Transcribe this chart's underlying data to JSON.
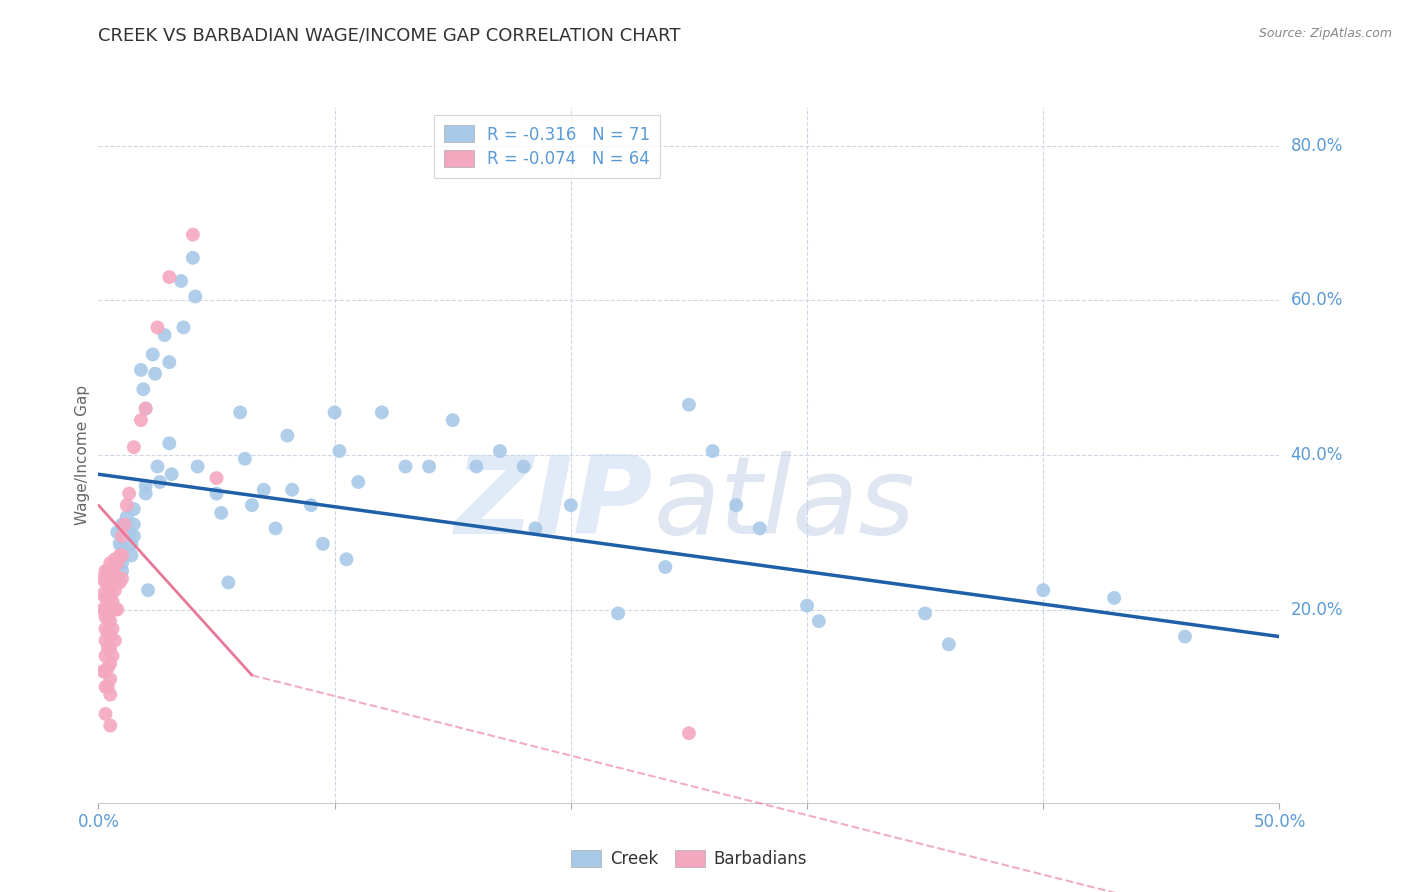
{
  "title": "CREEK VS BARBADIAN WAGE/INCOME GAP CORRELATION CHART",
  "source": "Source: ZipAtlas.com",
  "ylabel": "Wage/Income Gap",
  "xlim": [
    0.0,
    0.5
  ],
  "ylim": [
    -0.05,
    0.85
  ],
  "plot_ylim": [
    0.0,
    0.85
  ],
  "ytick_positions": [
    0.2,
    0.4,
    0.6,
    0.8
  ],
  "ytick_labels": [
    "20.0%",
    "40.0%",
    "60.0%",
    "80.0%"
  ],
  "xtick_positions": [
    0.0,
    0.1,
    0.2,
    0.3,
    0.4,
    0.5
  ],
  "xtick_labels_show": [
    "0.0%",
    "",
    "",
    "",
    "",
    "50.0%"
  ],
  "creek_color": "#a8c8e8",
  "barbadian_color": "#f4a8c0",
  "creek_line_color": "#1e5fa8",
  "barbadian_line_color": "#e87898",
  "legend_creek_r": "R = -0.316",
  "legend_creek_n": "N = 71",
  "legend_barb_r": "R = -0.074",
  "legend_barb_n": "N = 64",
  "creek_scatter_x": [
    0.008,
    0.009,
    0.01,
    0.01,
    0.01,
    0.01,
    0.01,
    0.012,
    0.013,
    0.014,
    0.014,
    0.015,
    0.015,
    0.015,
    0.018,
    0.019,
    0.02,
    0.02,
    0.02,
    0.021,
    0.023,
    0.024,
    0.025,
    0.026,
    0.028,
    0.03,
    0.03,
    0.031,
    0.035,
    0.036,
    0.04,
    0.041,
    0.042,
    0.05,
    0.052,
    0.055,
    0.06,
    0.062,
    0.065,
    0.07,
    0.075,
    0.08,
    0.082,
    0.09,
    0.095,
    0.1,
    0.102,
    0.105,
    0.11,
    0.12,
    0.13,
    0.14,
    0.15,
    0.16,
    0.17,
    0.18,
    0.185,
    0.2,
    0.22,
    0.24,
    0.25,
    0.26,
    0.27,
    0.28,
    0.3,
    0.305,
    0.35,
    0.36,
    0.4,
    0.43,
    0.46
  ],
  "creek_scatter_y": [
    0.3,
    0.285,
    0.28,
    0.27,
    0.26,
    0.25,
    0.31,
    0.32,
    0.3,
    0.285,
    0.27,
    0.33,
    0.31,
    0.295,
    0.51,
    0.485,
    0.46,
    0.36,
    0.35,
    0.225,
    0.53,
    0.505,
    0.385,
    0.365,
    0.555,
    0.52,
    0.415,
    0.375,
    0.625,
    0.565,
    0.655,
    0.605,
    0.385,
    0.35,
    0.325,
    0.235,
    0.455,
    0.395,
    0.335,
    0.355,
    0.305,
    0.425,
    0.355,
    0.335,
    0.285,
    0.455,
    0.405,
    0.265,
    0.365,
    0.455,
    0.385,
    0.385,
    0.445,
    0.385,
    0.405,
    0.385,
    0.305,
    0.335,
    0.195,
    0.255,
    0.465,
    0.405,
    0.335,
    0.305,
    0.205,
    0.185,
    0.195,
    0.155,
    0.225,
    0.215,
    0.165
  ],
  "barb_scatter_x": [
    0.002,
    0.002,
    0.002,
    0.002,
    0.003,
    0.003,
    0.003,
    0.003,
    0.003,
    0.003,
    0.003,
    0.003,
    0.003,
    0.003,
    0.003,
    0.004,
    0.004,
    0.004,
    0.004,
    0.004,
    0.004,
    0.004,
    0.004,
    0.005,
    0.005,
    0.005,
    0.005,
    0.005,
    0.005,
    0.005,
    0.005,
    0.005,
    0.005,
    0.005,
    0.005,
    0.006,
    0.006,
    0.006,
    0.006,
    0.006,
    0.007,
    0.007,
    0.007,
    0.007,
    0.007,
    0.008,
    0.008,
    0.008,
    0.009,
    0.009,
    0.01,
    0.01,
    0.01,
    0.011,
    0.012,
    0.013,
    0.015,
    0.018,
    0.02,
    0.025,
    0.03,
    0.04,
    0.05,
    0.25
  ],
  "barb_scatter_y": [
    0.24,
    0.22,
    0.2,
    0.12,
    0.25,
    0.235,
    0.215,
    0.2,
    0.19,
    0.175,
    0.16,
    0.14,
    0.12,
    0.1,
    0.065,
    0.25,
    0.23,
    0.21,
    0.19,
    0.17,
    0.15,
    0.125,
    0.1,
    0.26,
    0.245,
    0.23,
    0.215,
    0.2,
    0.185,
    0.165,
    0.15,
    0.13,
    0.11,
    0.09,
    0.05,
    0.25,
    0.23,
    0.21,
    0.175,
    0.14,
    0.265,
    0.245,
    0.225,
    0.2,
    0.16,
    0.26,
    0.24,
    0.2,
    0.27,
    0.235,
    0.295,
    0.27,
    0.24,
    0.31,
    0.335,
    0.35,
    0.41,
    0.445,
    0.46,
    0.565,
    0.63,
    0.685,
    0.37,
    0.04
  ],
  "creek_trend": [
    0.0,
    0.5,
    0.375,
    0.165
  ],
  "barb_trend_solid": [
    0.0,
    0.065,
    0.335,
    0.115
  ],
  "barb_trend_dashed": [
    0.065,
    0.5,
    0.115,
    -0.22
  ],
  "watermark_zip": "ZIP",
  "watermark_atlas": "atlas",
  "background_color": "#ffffff",
  "grid_color": "#d0d8e8",
  "axis_color": "#5b9bd5",
  "title_fontsize": 13,
  "tick_fontsize": 12,
  "legend_fontsize": 12,
  "ylabel_fontsize": 11
}
